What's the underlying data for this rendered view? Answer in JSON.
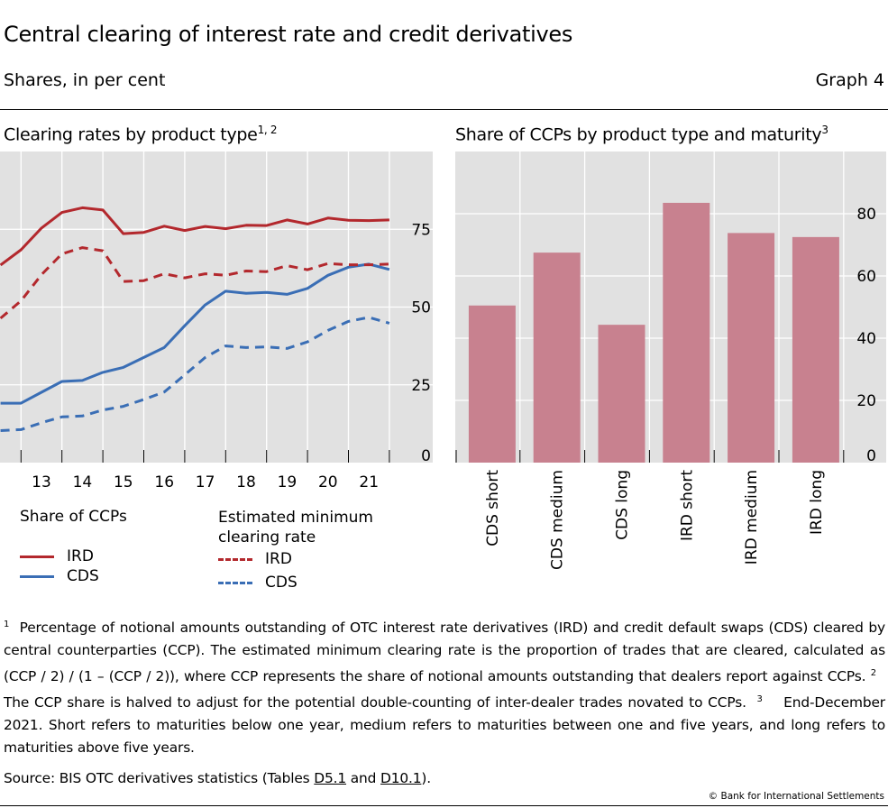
{
  "header": {
    "title": "Central clearing of interest rate and credit derivatives",
    "subtitle": "Shares, in per cent",
    "graph_number": "Graph 4"
  },
  "chart_data": [
    {
      "type": "line",
      "title": "Clearing rates by product type",
      "title_sup": "1, 2",
      "x": [
        "2012-06",
        "2012-12",
        "2013-06",
        "2013-12",
        "2014-06",
        "2014-12",
        "2015-06",
        "2015-12",
        "2016-06",
        "2016-12",
        "2017-06",
        "2017-12",
        "2018-06",
        "2018-12",
        "2019-06",
        "2019-12",
        "2020-06",
        "2020-12",
        "2021-06",
        "2021-12"
      ],
      "x_tick_labels": [
        "13",
        "14",
        "15",
        "16",
        "17",
        "18",
        "19",
        "20",
        "21"
      ],
      "y_ticks": [
        0,
        25,
        50,
        75
      ],
      "ylim": [
        0,
        100
      ],
      "y_axis_side": "right",
      "grid": true,
      "legend_groups": [
        "Share of CCPs",
        "Estimated minimum clearing rate"
      ],
      "series": [
        {
          "name": "IRD",
          "group": "Share of CCPs",
          "style": "solid",
          "color": "#b3282d",
          "values": [
            63.5,
            68.4,
            75.4,
            80.4,
            81.9,
            81.2,
            73.6,
            74.0,
            76.0,
            74.6,
            75.9,
            75.2,
            76.3,
            76.2,
            78.0,
            76.7,
            78.6,
            77.9,
            77.8,
            78.0
          ]
        },
        {
          "name": "CDS",
          "group": "Share of CCPs",
          "style": "solid",
          "color": "#3a6eb5",
          "values": [
            19.1,
            19.1,
            22.6,
            26.1,
            26.4,
            29.0,
            30.6,
            33.8,
            37.0,
            44.0,
            50.7,
            55.1,
            54.4,
            54.7,
            54.1,
            56.0,
            60.2,
            62.8,
            63.8,
            62.1
          ]
        },
        {
          "name": "IRD",
          "group": "Estimated minimum clearing rate",
          "style": "dashed",
          "color": "#b3282d",
          "values": [
            46.4,
            52.0,
            60.4,
            67.1,
            69.1,
            68.1,
            58.2,
            58.5,
            60.7,
            59.4,
            60.7,
            60.2,
            61.6,
            61.4,
            63.3,
            62.0,
            64.0,
            63.6,
            63.6,
            63.8
          ]
        },
        {
          "name": "CDS",
          "group": "Estimated minimum clearing rate",
          "style": "dashed",
          "color": "#3a6eb5",
          "values": [
            10.3,
            10.6,
            12.8,
            14.7,
            15.0,
            16.9,
            18.1,
            20.3,
            22.7,
            28.2,
            33.8,
            37.5,
            37.0,
            37.2,
            36.7,
            38.8,
            42.5,
            45.4,
            46.7,
            44.8
          ]
        }
      ]
    },
    {
      "type": "bar",
      "title": "Share of CCPs by product type and maturity",
      "title_sup": "3",
      "categories": [
        "CDS short",
        "CDS medium",
        "CDS long",
        "IRD short",
        "IRD medium",
        "IRD long"
      ],
      "values": [
        50.5,
        67.5,
        44.3,
        83.5,
        73.8,
        72.5
      ],
      "y_ticks": [
        0,
        20,
        40,
        60,
        80
      ],
      "ylim": [
        0,
        100
      ],
      "y_axis_side": "right",
      "grid": true,
      "color": "#c8818f"
    }
  ],
  "legend": {
    "group1_title": "Share of CCPs",
    "group2_title_line1": "Estimated minimum",
    "group2_title_line2": "clearing rate",
    "ird": "IRD",
    "cds": "CDS"
  },
  "notes": {
    "n1_mark": "1",
    "n1": "Percentage of notional amounts outstanding of OTC interest rate derivatives (IRD) and credit default swaps (CDS) cleared by central counterparties (CCP). The estimated minimum clearing rate is the proportion of trades that are cleared, calculated as (CCP / 2) / (1 – (CCP / 2)), where CCP represents the share of notional amounts outstanding that dealers report against CCPs.",
    "n2_mark": "2",
    "n2": "The CCP share is halved to adjust for the potential double-counting of inter-dealer trades novated to CCPs.",
    "n3_mark": "3",
    "n3": "End-December 2021. Short refers to maturities below one year, medium refers to maturities between one and five years, and long refers to maturities above five years."
  },
  "source": {
    "prefix": "Source: BIS OTC derivatives statistics (Tables ",
    "link1": "D5.1",
    "middle": " and ",
    "link2": "D10.1",
    "suffix": ")."
  },
  "copyright": "© Bank for International Settlements"
}
